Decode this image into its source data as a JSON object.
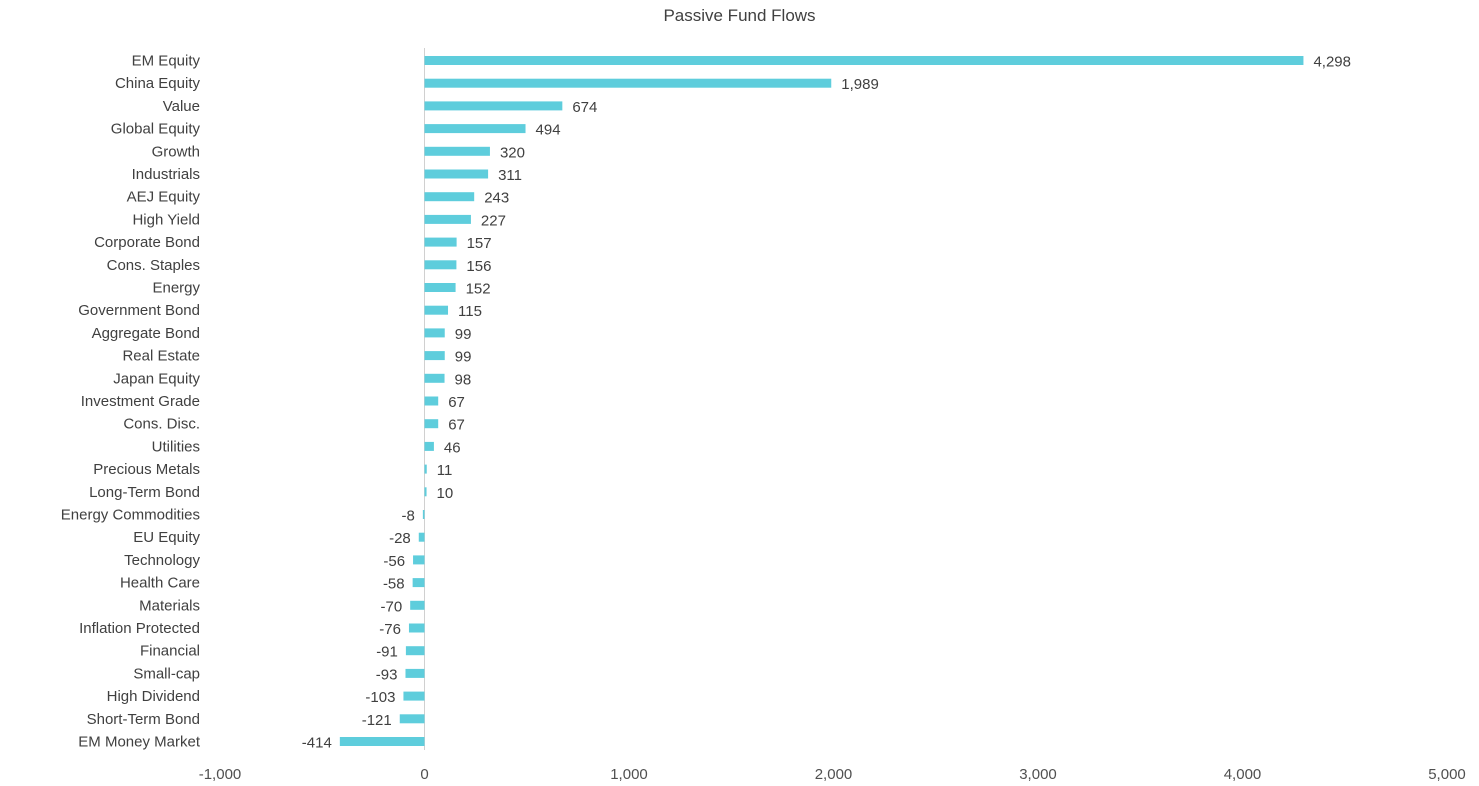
{
  "chart_data": {
    "type": "bar",
    "orientation": "horizontal",
    "title": "Passive Fund Flows",
    "categories": [
      "EM Equity",
      "China Equity",
      "Value",
      "Global Equity",
      "Growth",
      "Industrials",
      "AEJ Equity",
      "High Yield",
      "Corporate Bond",
      "Cons. Staples",
      "Energy",
      "Government Bond",
      "Aggregate Bond",
      "Real Estate",
      "Japan Equity",
      "Investment Grade",
      "Cons. Disc.",
      "Utilities",
      "Precious Metals",
      "Long-Term Bond",
      "Energy Commodities",
      "EU Equity",
      "Technology",
      "Health Care",
      "Materials",
      "Inflation Protected",
      "Financial",
      "Small-cap",
      "High Dividend",
      "Short-Term Bond",
      "EM Money Market"
    ],
    "values": [
      4298,
      1989,
      674,
      494,
      320,
      311,
      243,
      227,
      157,
      156,
      152,
      115,
      99,
      99,
      98,
      67,
      67,
      46,
      11,
      10,
      -8,
      -28,
      -56,
      -58,
      -70,
      -76,
      -91,
      -93,
      -103,
      -121,
      -414
    ],
    "value_labels": [
      "4,298",
      "1,989",
      "674",
      "494",
      "320",
      "311",
      "243",
      "227",
      "157",
      "156",
      "152",
      "115",
      "99",
      "99",
      "98",
      "67",
      "67",
      "46",
      "11",
      "10",
      "-8",
      "-28",
      "-56",
      "-58",
      "-70",
      "-76",
      "-91",
      "-93",
      "-103",
      "-121",
      "-414"
    ],
    "xlim": [
      -1000,
      5000
    ],
    "x_ticks": [
      -1000,
      0,
      1000,
      2000,
      3000,
      4000,
      5000
    ],
    "x_tick_labels": [
      "-1,000",
      "0",
      "1,000",
      "2,000",
      "3,000",
      "4,000",
      "5,000"
    ],
    "xlabel": "",
    "ylabel": "",
    "grid": false,
    "legend": "none",
    "bar_color": "#5ecddc",
    "axis_color": "#d0d0d0"
  }
}
